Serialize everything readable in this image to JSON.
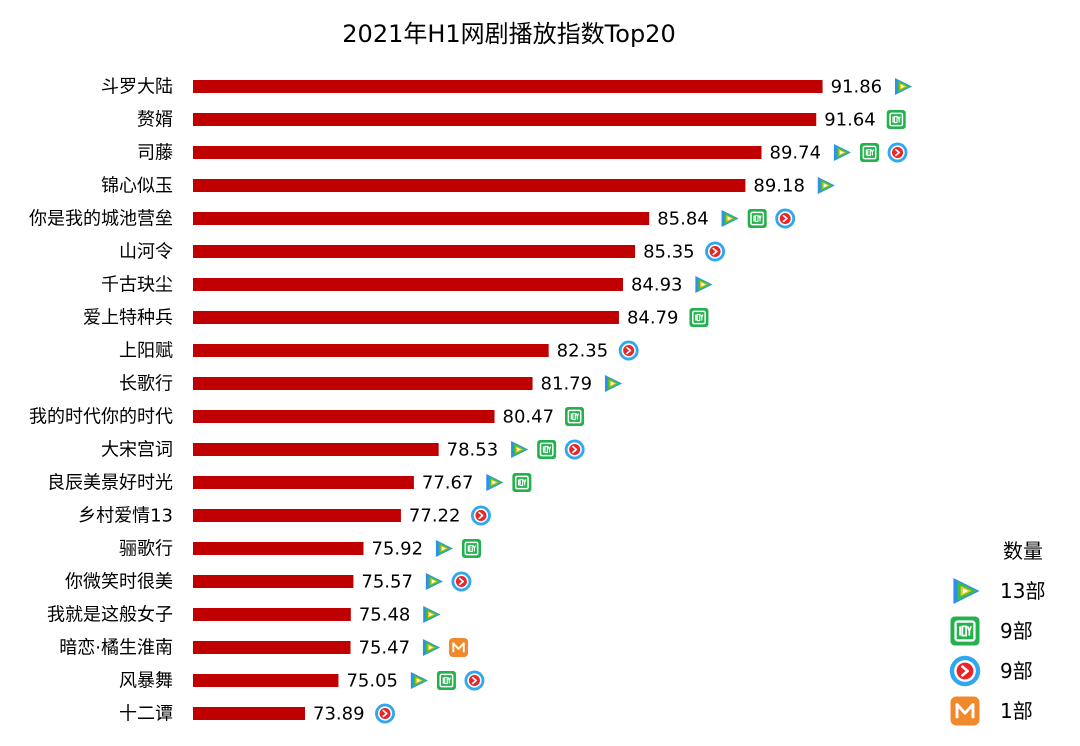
{
  "chart_data": {
    "type": "bar",
    "orientation": "horizontal",
    "title": "2021年H1网剧播放指数Top20",
    "xlabel": "",
    "ylabel": "",
    "xlim": [
      70,
      92.5
    ],
    "grid": false,
    "bar_color": "#c00000",
    "categories": [
      "斗罗大陆",
      "赘婿",
      "司藤",
      "锦心似玉",
      "你是我的城池营垒",
      "山河令",
      "千古玦尘",
      "爱上特种兵",
      "上阳赋",
      "长歌行",
      "我的时代你的时代",
      "大宋宫词",
      "良辰美景好时光",
      "乡村爱情13",
      "骊歌行",
      "你微笑时很美",
      "我就是这般女子",
      "暗恋·橘生淮南",
      "风暴舞",
      "十二谭"
    ],
    "values": [
      "91.86",
      "91.64",
      "89.74",
      "89.18",
      "85.84",
      "85.35",
      "84.93",
      "84.79",
      "82.35",
      "81.79",
      "80.47",
      "78.53",
      "77.67",
      "77.22",
      "75.92",
      "75.57",
      "75.48",
      "75.47",
      "75.05",
      "73.89"
    ],
    "platforms": [
      [
        "tencent"
      ],
      [
        "iqiyi"
      ],
      [
        "tencent",
        "iqiyi",
        "youku"
      ],
      [
        "tencent"
      ],
      [
        "tencent",
        "iqiyi",
        "youku"
      ],
      [
        "youku"
      ],
      [
        "tencent"
      ],
      [
        "iqiyi"
      ],
      [
        "youku"
      ],
      [
        "tencent"
      ],
      [
        "iqiyi"
      ],
      [
        "tencent",
        "iqiyi",
        "youku"
      ],
      [
        "tencent",
        "iqiyi"
      ],
      [
        "youku"
      ],
      [
        "tencent",
        "iqiyi"
      ],
      [
        "tencent",
        "youku"
      ],
      [
        "tencent"
      ],
      [
        "tencent",
        "mango"
      ],
      [
        "tencent",
        "iqiyi",
        "youku"
      ],
      [
        "youku"
      ]
    ],
    "legend": {
      "title": "数量",
      "placement": "right",
      "entries": [
        {
          "icon": "tencent-video-icon",
          "label": "13部"
        },
        {
          "icon": "iqiyi-icon",
          "label": "9部"
        },
        {
          "icon": "youku-icon",
          "label": "9部"
        },
        {
          "icon": "mango-tv-icon",
          "label": "1部"
        }
      ]
    }
  },
  "colors": {
    "bar": "#c00000",
    "tencent_blue": "#2e8ff0",
    "tencent_green": "#3cc13c",
    "tencent_yellow": "#f7c325",
    "iqiyi_green": "#22b14c",
    "youku_blue": "#2fa8ee",
    "youku_red": "#e8262a",
    "mango_orange": "#f0892b"
  }
}
